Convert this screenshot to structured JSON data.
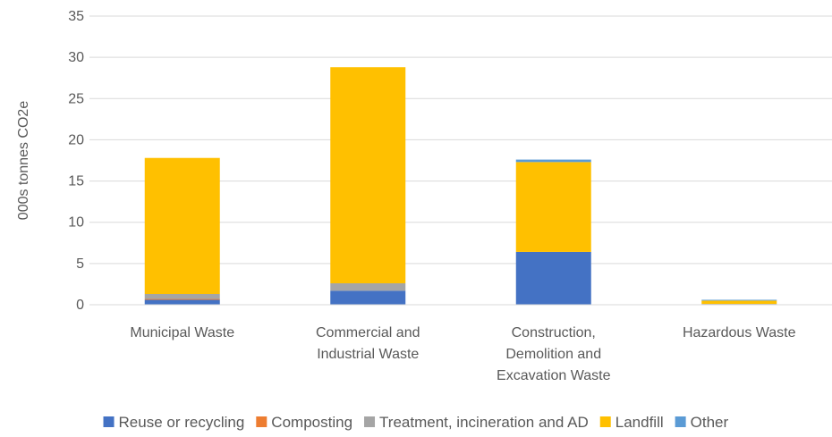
{
  "chart_data": {
    "type": "bar",
    "stacked": true,
    "title": "",
    "xlabel": "",
    "ylabel": "000s tonnes CO2e",
    "ylim": [
      0,
      35
    ],
    "yticks": [
      0,
      5,
      10,
      15,
      20,
      25,
      30,
      35
    ],
    "grid": "horizontal",
    "legend_position": "bottom",
    "categories": [
      [
        "Municipal Waste"
      ],
      [
        "Commercial and",
        "Industrial Waste"
      ],
      [
        "Construction,",
        "Demolition and",
        "Excavation Waste"
      ],
      [
        "Hazardous Waste"
      ]
    ],
    "series": [
      {
        "name": "Reuse or recycling",
        "color": "#4472C4",
        "values": [
          0.6,
          1.7,
          6.4,
          0.0
        ]
      },
      {
        "name": "Composting",
        "color": "#ED7D31",
        "values": [
          0.1,
          0.0,
          0.0,
          0.0
        ]
      },
      {
        "name": "Treatment, incineration and AD",
        "color": "#A5A5A5",
        "values": [
          0.6,
          0.9,
          0.0,
          0.1
        ]
      },
      {
        "name": "Landfill",
        "color": "#FFC000",
        "values": [
          16.5,
          26.2,
          10.9,
          0.4
        ]
      },
      {
        "name": "Other",
        "color": "#5B9BD5",
        "values": [
          0.0,
          0.0,
          0.3,
          0.1
        ]
      }
    ]
  }
}
